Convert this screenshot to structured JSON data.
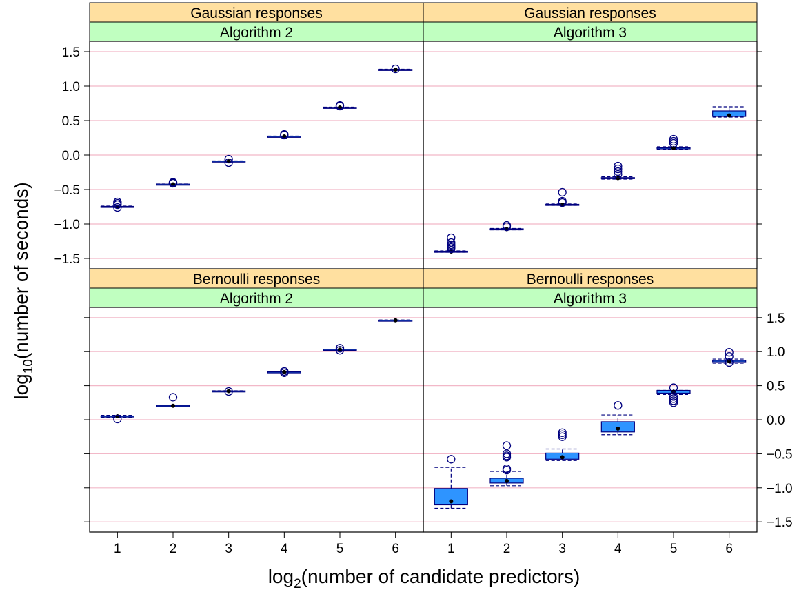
{
  "chart_data": {
    "type": "boxplot",
    "xlabel": {
      "base": "log",
      "sub": "2",
      "rest": "(number of candidate predictors)"
    },
    "ylabel": {
      "base": "log",
      "sub": "10",
      "rest": "(number of seconds)"
    },
    "x_categories": [
      "1",
      "2",
      "3",
      "4",
      "5",
      "6"
    ],
    "y_ticks": [
      "-1.5",
      "-1.0",
      "-0.5",
      "0.0",
      "0.5",
      "1.0",
      "1.5"
    ],
    "y_tick_values": [
      -1.5,
      -1.0,
      -0.5,
      0.0,
      0.5,
      1.0,
      1.5
    ],
    "ylim": [
      -1.65,
      1.65
    ],
    "grid": true,
    "colors": {
      "strip_outer": "#ffe0a0",
      "strip_inner": "#c0ffc0",
      "box_fill": "#2e94ff",
      "box_line": "#00007f",
      "outlier": "#00007f",
      "gridline": "#f2b8c8"
    },
    "panels": [
      {
        "strip_top": "Gaussian responses",
        "strip_bottom": "Algorithm 2",
        "boxes": [
          {
            "x": 1,
            "min": -0.755,
            "q1": -0.75,
            "median": -0.748,
            "q3": -0.745,
            "max": -0.74,
            "outliers": [
              -0.72,
              -0.7,
              -0.68,
              -0.76
            ]
          },
          {
            "x": 2,
            "min": -0.43,
            "q1": -0.428,
            "median": -0.425,
            "q3": -0.422,
            "max": -0.42,
            "outliers": [
              -0.41,
              -0.4,
              -0.395
            ]
          },
          {
            "x": 3,
            "min": -0.095,
            "q1": -0.093,
            "median": -0.09,
            "q3": -0.087,
            "max": -0.085,
            "outliers": [
              -0.06,
              -0.11
            ]
          },
          {
            "x": 4,
            "min": 0.265,
            "q1": 0.268,
            "median": 0.27,
            "q3": 0.272,
            "max": 0.275,
            "outliers": [
              0.29,
              0.3
            ]
          },
          {
            "x": 5,
            "min": 0.685,
            "q1": 0.688,
            "median": 0.69,
            "q3": 0.692,
            "max": 0.695,
            "outliers": [
              0.71,
              0.72
            ]
          },
          {
            "x": 6,
            "min": 1.235,
            "q1": 1.238,
            "median": 1.24,
            "q3": 1.242,
            "max": 1.245,
            "outliers": [
              1.25
            ]
          }
        ]
      },
      {
        "strip_top": "Gaussian responses",
        "strip_bottom": "Algorithm 3",
        "boxes": [
          {
            "x": 1,
            "min": -1.41,
            "q1": -1.405,
            "median": -1.4,
            "q3": -1.395,
            "max": -1.39,
            "outliers": [
              -1.2,
              -1.27,
              -1.3,
              -1.32,
              -1.34,
              -1.36
            ]
          },
          {
            "x": 2,
            "min": -1.085,
            "q1": -1.08,
            "median": -1.075,
            "q3": -1.07,
            "max": -1.065,
            "outliers": [
              -1.02,
              -1.04
            ]
          },
          {
            "x": 3,
            "min": -0.73,
            "q1": -0.725,
            "median": -0.72,
            "q3": -0.715,
            "max": -0.7,
            "outliers": [
              -0.54,
              -0.67,
              -0.69
            ]
          },
          {
            "x": 4,
            "min": -0.35,
            "q1": -0.342,
            "median": -0.335,
            "q3": -0.328,
            "max": -0.315,
            "outliers": [
              -0.16,
              -0.2,
              -0.24,
              -0.28
            ]
          },
          {
            "x": 5,
            "min": 0.08,
            "q1": 0.09,
            "median": 0.1,
            "q3": 0.105,
            "max": 0.12,
            "outliers": [
              0.23,
              0.2,
              0.17
            ]
          },
          {
            "x": 6,
            "min": 0.55,
            "q1": 0.56,
            "median": 0.575,
            "q3": 0.64,
            "max": 0.7,
            "outliers": []
          }
        ]
      },
      {
        "strip_top": "Bernoulli responses",
        "strip_bottom": "Algorithm 2",
        "boxes": [
          {
            "x": 1,
            "min": 0.035,
            "q1": 0.04,
            "median": 0.05,
            "q3": 0.055,
            "max": 0.065,
            "outliers": [
              0.01
            ]
          },
          {
            "x": 2,
            "min": 0.195,
            "q1": 0.2,
            "median": 0.205,
            "q3": 0.21,
            "max": 0.215,
            "outliers": [
              0.33
            ]
          },
          {
            "x": 3,
            "min": 0.415,
            "q1": 0.418,
            "median": 0.42,
            "q3": 0.423,
            "max": 0.425,
            "outliers": [
              0.415
            ]
          },
          {
            "x": 4,
            "min": 0.69,
            "q1": 0.695,
            "median": 0.7,
            "q3": 0.703,
            "max": 0.71,
            "outliers": [
              0.69,
              0.71
            ]
          },
          {
            "x": 5,
            "min": 1.025,
            "q1": 1.028,
            "median": 1.03,
            "q3": 1.032,
            "max": 1.035,
            "outliers": [
              1.02,
              1.05
            ]
          },
          {
            "x": 6,
            "min": 1.455,
            "q1": 1.457,
            "median": 1.46,
            "q3": 1.462,
            "max": 1.465,
            "outliers": []
          }
        ]
      },
      {
        "strip_top": "Bernoulli responses",
        "strip_bottom": "Algorithm 3",
        "boxes": [
          {
            "x": 1,
            "min": -1.3,
            "q1": -1.25,
            "median": -1.2,
            "q3": -1.01,
            "max": -0.7,
            "outliers": [
              -0.58
            ]
          },
          {
            "x": 2,
            "min": -0.97,
            "q1": -0.93,
            "median": -0.9,
            "q3": -0.86,
            "max": -0.76,
            "outliers": [
              -0.38,
              -0.5,
              -0.53,
              -0.55,
              -0.72,
              -0.74
            ]
          },
          {
            "x": 3,
            "min": -0.6,
            "q1": -0.58,
            "median": -0.55,
            "q3": -0.49,
            "max": -0.43,
            "outliers": [
              -0.19,
              -0.22,
              -0.25
            ]
          },
          {
            "x": 4,
            "min": -0.22,
            "q1": -0.18,
            "median": -0.13,
            "q3": -0.03,
            "max": 0.07,
            "outliers": [
              0.21
            ]
          },
          {
            "x": 5,
            "min": 0.37,
            "q1": 0.39,
            "median": 0.41,
            "q3": 0.43,
            "max": 0.45,
            "outliers": [
              0.25,
              0.28,
              0.31,
              0.34,
              0.47
            ]
          },
          {
            "x": 6,
            "min": 0.83,
            "q1": 0.85,
            "median": 0.86,
            "q3": 0.87,
            "max": 0.89,
            "outliers": [
              0.84,
              0.93,
              0.99
            ]
          }
        ]
      }
    ]
  }
}
